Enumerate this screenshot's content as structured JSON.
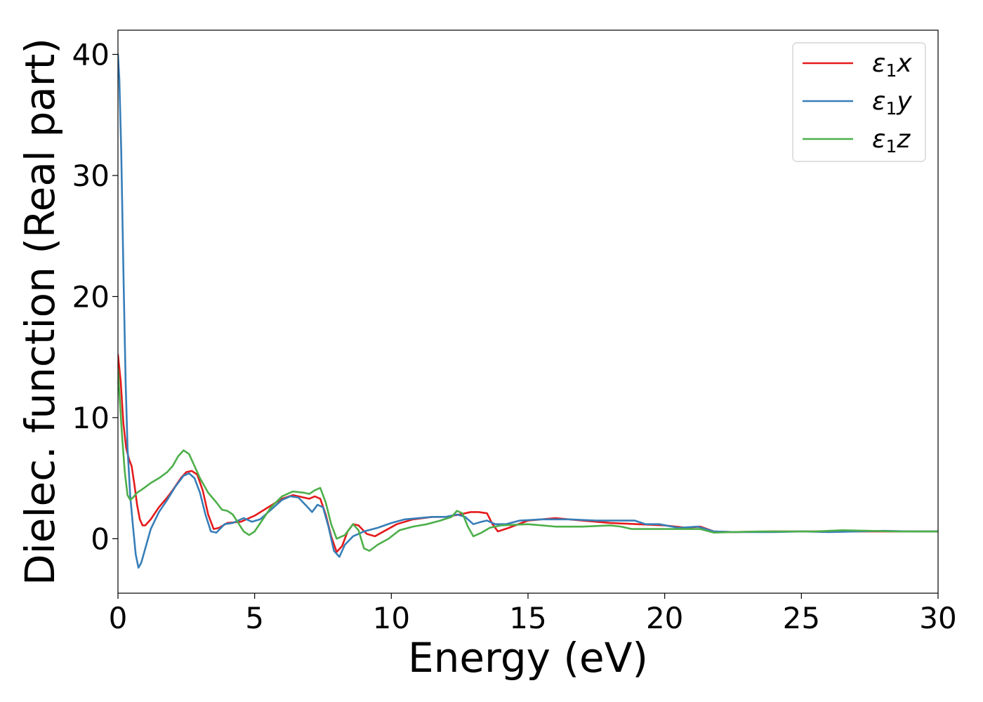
{
  "chart_data": {
    "type": "line",
    "xlabel": "Energy (eV)",
    "ylabel": "Dielec. function (Real part)",
    "xlim": [
      0,
      30
    ],
    "ylim": [
      -4.5,
      42
    ],
    "xticks": [
      0,
      5,
      10,
      15,
      20,
      25,
      30
    ],
    "yticks": [
      0,
      10,
      20,
      30,
      40
    ],
    "grid": false,
    "legend_position": "top-right",
    "series": [
      {
        "name": "ε1x",
        "legend_base": "ε",
        "legend_sub": "1",
        "legend_suffix": "x",
        "color": "#e41a1c",
        "points": [
          [
            0,
            15.2
          ],
          [
            0.1,
            13
          ],
          [
            0.2,
            9.5
          ],
          [
            0.3,
            7.5
          ],
          [
            0.4,
            6.6
          ],
          [
            0.5,
            6
          ],
          [
            0.6,
            4.5
          ],
          [
            0.7,
            2.8
          ],
          [
            0.8,
            1.6
          ],
          [
            0.9,
            1.1
          ],
          [
            1.0,
            1.1
          ],
          [
            1.2,
            1.6
          ],
          [
            1.5,
            2.6
          ],
          [
            1.8,
            3.4
          ],
          [
            2.0,
            4.0
          ],
          [
            2.3,
            5.0
          ],
          [
            2.5,
            5.5
          ],
          [
            2.7,
            5.6
          ],
          [
            2.9,
            5.3
          ],
          [
            3.1,
            4.0
          ],
          [
            3.3,
            2.0
          ],
          [
            3.5,
            0.8
          ],
          [
            3.7,
            0.9
          ],
          [
            4.0,
            1.3
          ],
          [
            4.5,
            1.4
          ],
          [
            5.0,
            1.9
          ],
          [
            5.5,
            2.6
          ],
          [
            6.0,
            3.3
          ],
          [
            6.4,
            3.6
          ],
          [
            6.8,
            3.4
          ],
          [
            7.0,
            3.3
          ],
          [
            7.2,
            3.5
          ],
          [
            7.4,
            3.3
          ],
          [
            7.6,
            2.0
          ],
          [
            7.8,
            0.2
          ],
          [
            8.0,
            -1.1
          ],
          [
            8.2,
            -0.6
          ],
          [
            8.4,
            0.6
          ],
          [
            8.6,
            1.2
          ],
          [
            8.8,
            1.1
          ],
          [
            9.1,
            0.4
          ],
          [
            9.4,
            0.2
          ],
          [
            9.8,
            0.7
          ],
          [
            10.2,
            1.2
          ],
          [
            10.8,
            1.6
          ],
          [
            11.5,
            1.8
          ],
          [
            12.0,
            1.8
          ],
          [
            12.5,
            2.0
          ],
          [
            12.9,
            2.2
          ],
          [
            13.2,
            2.2
          ],
          [
            13.5,
            2.1
          ],
          [
            13.7,
            1.2
          ],
          [
            13.9,
            0.6
          ],
          [
            14.3,
            0.9
          ],
          [
            15.0,
            1.5
          ],
          [
            16.0,
            1.7
          ],
          [
            17.0,
            1.5
          ],
          [
            18.0,
            1.3
          ],
          [
            19.0,
            1.2
          ],
          [
            20.0,
            1.1
          ],
          [
            20.8,
            0.9
          ],
          [
            21.3,
            1.0
          ],
          [
            21.8,
            0.6
          ],
          [
            22.5,
            0.55
          ],
          [
            24.0,
            0.6
          ],
          [
            25.0,
            0.6
          ],
          [
            26.0,
            0.6
          ],
          [
            27.0,
            0.6
          ],
          [
            28.0,
            0.6
          ],
          [
            29.0,
            0.6
          ],
          [
            30.0,
            0.6
          ]
        ]
      },
      {
        "name": "ε1y",
        "legend_base": "ε",
        "legend_sub": "1",
        "legend_suffix": "y",
        "color": "#377eb8",
        "points": [
          [
            0,
            40
          ],
          [
            0.05,
            38
          ],
          [
            0.12,
            32
          ],
          [
            0.2,
            22
          ],
          [
            0.28,
            13
          ],
          [
            0.35,
            7.5
          ],
          [
            0.45,
            3.5
          ],
          [
            0.55,
            1.0
          ],
          [
            0.65,
            -1.3
          ],
          [
            0.75,
            -2.4
          ],
          [
            0.85,
            -2.0
          ],
          [
            1.0,
            -0.8
          ],
          [
            1.2,
            0.8
          ],
          [
            1.5,
            2.2
          ],
          [
            1.8,
            3.2
          ],
          [
            2.1,
            4.3
          ],
          [
            2.4,
            5.2
          ],
          [
            2.6,
            5.4
          ],
          [
            2.8,
            5.0
          ],
          [
            3.0,
            3.8
          ],
          [
            3.2,
            2.0
          ],
          [
            3.4,
            0.6
          ],
          [
            3.6,
            0.5
          ],
          [
            3.9,
            1.2
          ],
          [
            4.2,
            1.3
          ],
          [
            4.6,
            1.7
          ],
          [
            4.9,
            1.4
          ],
          [
            5.2,
            1.6
          ],
          [
            5.6,
            2.4
          ],
          [
            6.0,
            3.2
          ],
          [
            6.3,
            3.5
          ],
          [
            6.6,
            3.4
          ],
          [
            6.9,
            2.7
          ],
          [
            7.1,
            2.2
          ],
          [
            7.3,
            2.8
          ],
          [
            7.5,
            2.6
          ],
          [
            7.7,
            1.0
          ],
          [
            7.9,
            -1.0
          ],
          [
            8.1,
            -1.5
          ],
          [
            8.3,
            -0.5
          ],
          [
            8.6,
            0.2
          ],
          [
            9.0,
            0.6
          ],
          [
            9.5,
            0.9
          ],
          [
            10.0,
            1.3
          ],
          [
            10.5,
            1.6
          ],
          [
            11.0,
            1.7
          ],
          [
            11.5,
            1.8
          ],
          [
            12.0,
            1.8
          ],
          [
            12.4,
            2.0
          ],
          [
            12.7,
            1.8
          ],
          [
            13.0,
            1.2
          ],
          [
            13.3,
            1.4
          ],
          [
            13.5,
            1.5
          ],
          [
            13.8,
            1.2
          ],
          [
            14.2,
            1.2
          ],
          [
            14.7,
            1.5
          ],
          [
            15.5,
            1.6
          ],
          [
            16.5,
            1.6
          ],
          [
            17.5,
            1.5
          ],
          [
            18.5,
            1.5
          ],
          [
            18.9,
            1.5
          ],
          [
            19.3,
            1.2
          ],
          [
            19.8,
            1.2
          ],
          [
            20.5,
            0.9
          ],
          [
            21.2,
            1.0
          ],
          [
            21.8,
            0.6
          ],
          [
            22.5,
            0.55
          ],
          [
            24,
            0.55
          ],
          [
            25,
            0.6
          ],
          [
            26,
            0.55
          ],
          [
            27,
            0.6
          ],
          [
            28,
            0.65
          ],
          [
            29,
            0.6
          ],
          [
            30,
            0.6
          ]
        ]
      },
      {
        "name": "ε1z",
        "legend_base": "ε",
        "legend_sub": "1",
        "legend_suffix": "z",
        "color": "#4daf4a",
        "points": [
          [
            0,
            14
          ],
          [
            0.08,
            11
          ],
          [
            0.15,
            8.5
          ],
          [
            0.25,
            5.5
          ],
          [
            0.35,
            3.6
          ],
          [
            0.45,
            3.2
          ],
          [
            0.55,
            3.4
          ],
          [
            0.7,
            3.8
          ],
          [
            0.9,
            4.1
          ],
          [
            1.2,
            4.6
          ],
          [
            1.5,
            5.0
          ],
          [
            1.8,
            5.5
          ],
          [
            2.0,
            6.0
          ],
          [
            2.2,
            6.8
          ],
          [
            2.4,
            7.3
          ],
          [
            2.6,
            7.0
          ],
          [
            2.8,
            6.0
          ],
          [
            3.0,
            5.0
          ],
          [
            3.3,
            3.8
          ],
          [
            3.6,
            3.0
          ],
          [
            3.8,
            2.4
          ],
          [
            4.0,
            2.3
          ],
          [
            4.2,
            2.0
          ],
          [
            4.4,
            1.3
          ],
          [
            4.6,
            0.6
          ],
          [
            4.8,
            0.3
          ],
          [
            5.0,
            0.6
          ],
          [
            5.3,
            1.6
          ],
          [
            5.6,
            2.6
          ],
          [
            6.0,
            3.5
          ],
          [
            6.4,
            3.9
          ],
          [
            6.8,
            3.8
          ],
          [
            7.0,
            3.7
          ],
          [
            7.2,
            4.0
          ],
          [
            7.4,
            4.2
          ],
          [
            7.6,
            3.0
          ],
          [
            7.8,
            1.2
          ],
          [
            8.0,
            0.0
          ],
          [
            8.3,
            0.3
          ],
          [
            8.6,
            1.2
          ],
          [
            8.8,
            0.7
          ],
          [
            9.0,
            -0.8
          ],
          [
            9.2,
            -1.0
          ],
          [
            9.5,
            -0.5
          ],
          [
            9.9,
            0.0
          ],
          [
            10.3,
            0.7
          ],
          [
            10.8,
            1.0
          ],
          [
            11.3,
            1.2
          ],
          [
            11.8,
            1.5
          ],
          [
            12.2,
            1.8
          ],
          [
            12.4,
            2.3
          ],
          [
            12.6,
            2.1
          ],
          [
            12.8,
            1.0
          ],
          [
            13.0,
            0.2
          ],
          [
            13.3,
            0.5
          ],
          [
            13.6,
            0.9
          ],
          [
            14.0,
            1.1
          ],
          [
            15.0,
            1.2
          ],
          [
            16.0,
            1.0
          ],
          [
            17.0,
            1.0
          ],
          [
            18.0,
            1.1
          ],
          [
            18.4,
            1.0
          ],
          [
            18.8,
            0.8
          ],
          [
            19.5,
            0.8
          ],
          [
            20.5,
            0.8
          ],
          [
            21.3,
            0.8
          ],
          [
            21.8,
            0.5
          ],
          [
            22.5,
            0.55
          ],
          [
            23.5,
            0.6
          ],
          [
            24.5,
            0.6
          ],
          [
            25.5,
            0.6
          ],
          [
            26.5,
            0.7
          ],
          [
            27.5,
            0.65
          ],
          [
            28.5,
            0.6
          ],
          [
            30,
            0.6
          ]
        ]
      }
    ]
  }
}
